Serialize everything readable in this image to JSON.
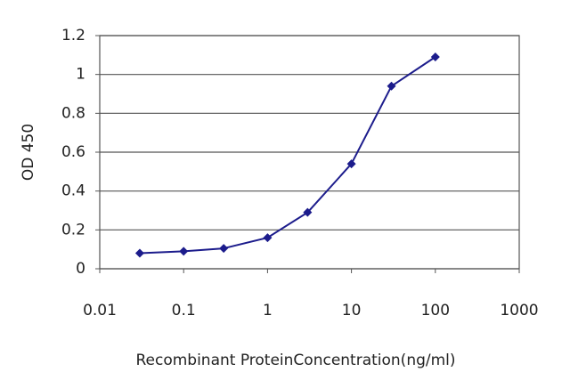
{
  "chart_data": {
    "type": "line",
    "xlabel": "Recombinant ProteinConcentration(ng/ml)",
    "ylabel": "OD 450",
    "x": [
      0.03,
      0.1,
      0.3,
      1,
      3,
      10,
      30,
      100
    ],
    "values": [
      0.08,
      0.09,
      0.105,
      0.16,
      0.29,
      0.54,
      0.94,
      1.09
    ],
    "color": "#1c1c8c",
    "xscale": "log",
    "xlim": [
      0.01,
      1000
    ],
    "xticks": [
      0.01,
      0.1,
      1,
      10,
      100,
      1000
    ],
    "ylim": [
      0,
      1.2
    ],
    "yticks": [
      0,
      0.2,
      0.4,
      0.6,
      0.8,
      1,
      1.2
    ],
    "grid": true
  }
}
